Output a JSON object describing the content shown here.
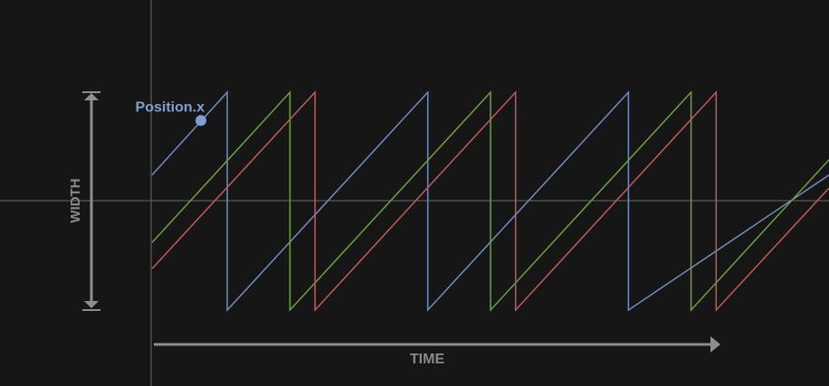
{
  "labels": {
    "width": "WIDTH",
    "time": "TIME",
    "tracked_property": "Position.x"
  },
  "colors": {
    "background": "#161616",
    "axis": "#6b6b6b",
    "arrow": "#8e8e8e",
    "label_text": "#8a8a8a",
    "marker": "#7ea0cf",
    "marker_text": "#7ea0cf"
  },
  "chart_data": {
    "type": "line",
    "title": "",
    "xlabel": "TIME",
    "ylabel": "WIDTH",
    "ylim": [
      0,
      1
    ],
    "xlim": [
      0,
      2.7
    ],
    "grid": false,
    "series": [
      {
        "color": "#6f8fbf",
        "x": [
          0,
          0.3,
          0.3,
          1.1,
          1.1,
          1.9,
          1.9,
          2.7
        ],
        "y": [
          0.62,
          1,
          0,
          1,
          0,
          1,
          0,
          0.62
        ]
      },
      {
        "color": "#6fa33a",
        "x": [
          0,
          0.55,
          0.55,
          1.35,
          1.35,
          2.15,
          2.15,
          2.7
        ],
        "y": [
          0.31,
          1,
          0,
          1,
          0,
          1,
          0,
          0.69
        ]
      },
      {
        "color": "#c25b58",
        "x": [
          0,
          0.65,
          0.65,
          1.45,
          1.45,
          2.25,
          2.25,
          2.7
        ],
        "y": [
          0.19,
          1,
          0,
          1,
          0,
          1,
          0,
          0.56
        ]
      }
    ],
    "marker": {
      "series": 0,
      "x": 0.195,
      "y": 0.87
    }
  }
}
